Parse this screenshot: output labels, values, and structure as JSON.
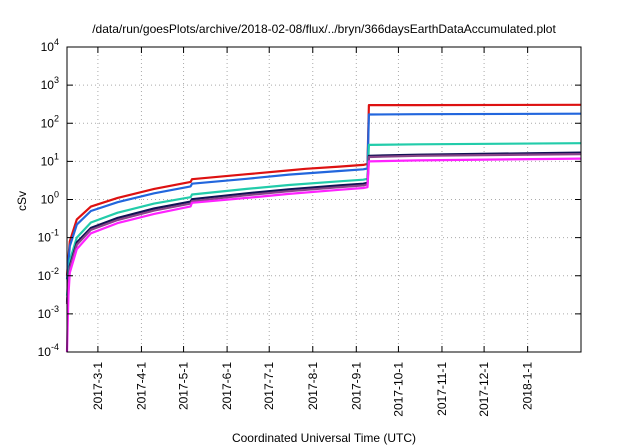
{
  "chart_data": {
    "type": "line",
    "title": "/data/run/goesPlots/archive/2018-02-08/flux/../bryn/366daysEarthDataAccumulated.plot",
    "xlabel": "Coordinated Universal Time (UTC)",
    "ylabel": "cSv",
    "yscale": "log",
    "ylim": [
      0.0001,
      10000
    ],
    "xlim": [
      "2017-02-07",
      "2018-02-08"
    ],
    "grid": true,
    "yticks": [
      {
        "value": 0.0001,
        "base": "10",
        "exp": "-4"
      },
      {
        "value": 0.001,
        "base": "10",
        "exp": "-3"
      },
      {
        "value": 0.01,
        "base": "10",
        "exp": "-2"
      },
      {
        "value": 0.1,
        "base": "10",
        "exp": "-1"
      },
      {
        "value": 1,
        "base": "10",
        "exp": "0"
      },
      {
        "value": 10,
        "base": "10",
        "exp": "1"
      },
      {
        "value": 100,
        "base": "10",
        "exp": "2"
      },
      {
        "value": 1000,
        "base": "10",
        "exp": "3"
      },
      {
        "value": 10000,
        "base": "10",
        "exp": "4"
      }
    ],
    "xticks": [
      {
        "date": "2017-03-01",
        "label": "2017-3-1"
      },
      {
        "date": "2017-04-01",
        "label": "2017-4-1"
      },
      {
        "date": "2017-05-01",
        "label": "2017-5-1"
      },
      {
        "date": "2017-06-01",
        "label": "2017-6-1"
      },
      {
        "date": "2017-07-01",
        "label": "2017-7-1"
      },
      {
        "date": "2017-08-01",
        "label": "2017-8-1"
      },
      {
        "date": "2017-09-01",
        "label": "2017-9-1"
      },
      {
        "date": "2017-10-01",
        "label": "2017-10-1"
      },
      {
        "date": "2017-11-01",
        "label": "2017-11-1"
      },
      {
        "date": "2017-12-01",
        "label": "2017-12-1"
      },
      {
        "date": "2018-01-01",
        "label": "2018-1-1"
      }
    ],
    "series": [
      {
        "color": "#dd1111",
        "points": [
          [
            "2017-02-07",
            0.01
          ],
          [
            "2017-02-09",
            0.08
          ],
          [
            "2017-02-14",
            0.3
          ],
          [
            "2017-02-24",
            0.65
          ],
          [
            "2017-03-15",
            1.1
          ],
          [
            "2017-04-10",
            1.9
          ],
          [
            "2017-05-06",
            2.9
          ],
          [
            "2017-05-07",
            3.4
          ],
          [
            "2017-06-15",
            4.6
          ],
          [
            "2017-07-15",
            5.8
          ],
          [
            "2017-07-27",
            6.4
          ],
          [
            "2017-08-20",
            7.3
          ],
          [
            "2017-09-06",
            8.1
          ],
          [
            "2017-09-09",
            8.6
          ],
          [
            "2017-09-10",
            300
          ],
          [
            "2017-10-15",
            300
          ],
          [
            "2018-02-08",
            305
          ]
        ]
      },
      {
        "color": "#2266dd",
        "points": [
          [
            "2017-02-07",
            0.008
          ],
          [
            "2017-02-09",
            0.06
          ],
          [
            "2017-02-14",
            0.22
          ],
          [
            "2017-02-24",
            0.5
          ],
          [
            "2017-03-15",
            0.85
          ],
          [
            "2017-04-10",
            1.45
          ],
          [
            "2017-05-06",
            2.2
          ],
          [
            "2017-05-07",
            2.6
          ],
          [
            "2017-06-15",
            3.5
          ],
          [
            "2017-07-15",
            4.5
          ],
          [
            "2017-08-20",
            5.6
          ],
          [
            "2017-09-06",
            6.2
          ],
          [
            "2017-09-09",
            6.5
          ],
          [
            "2017-09-10",
            170
          ],
          [
            "2017-10-15",
            173
          ],
          [
            "2018-02-08",
            178
          ]
        ]
      },
      {
        "color": "#22ccaa",
        "points": [
          [
            "2017-02-07",
            0.003
          ],
          [
            "2017-02-09",
            0.025
          ],
          [
            "2017-02-14",
            0.1
          ],
          [
            "2017-02-24",
            0.25
          ],
          [
            "2017-03-15",
            0.45
          ],
          [
            "2017-04-10",
            0.78
          ],
          [
            "2017-05-06",
            1.15
          ],
          [
            "2017-05-07",
            1.35
          ],
          [
            "2017-06-15",
            1.9
          ],
          [
            "2017-07-15",
            2.4
          ],
          [
            "2017-08-20",
            3.0
          ],
          [
            "2017-09-06",
            3.3
          ],
          [
            "2017-09-09",
            3.5
          ],
          [
            "2017-09-10",
            27
          ],
          [
            "2017-10-15",
            28
          ],
          [
            "2018-02-08",
            30
          ]
        ]
      },
      {
        "color": "#111155",
        "points": [
          [
            "2017-02-07",
            0.002
          ],
          [
            "2017-02-09",
            0.018
          ],
          [
            "2017-02-14",
            0.075
          ],
          [
            "2017-02-24",
            0.18
          ],
          [
            "2017-03-15",
            0.33
          ],
          [
            "2017-04-10",
            0.58
          ],
          [
            "2017-05-06",
            0.88
          ],
          [
            "2017-05-07",
            1.02
          ],
          [
            "2017-06-15",
            1.45
          ],
          [
            "2017-07-15",
            1.85
          ],
          [
            "2017-08-20",
            2.35
          ],
          [
            "2017-09-06",
            2.6
          ],
          [
            "2017-09-09",
            2.75
          ],
          [
            "2017-09-10",
            14
          ],
          [
            "2017-10-15",
            15
          ],
          [
            "2018-02-08",
            17
          ]
        ]
      },
      {
        "color": "#884488",
        "points": [
          [
            "2017-02-07",
            0.0018
          ],
          [
            "2017-02-09",
            0.016
          ],
          [
            "2017-02-14",
            0.065
          ],
          [
            "2017-02-24",
            0.16
          ],
          [
            "2017-03-15",
            0.29
          ],
          [
            "2017-04-10",
            0.51
          ],
          [
            "2017-05-06",
            0.78
          ],
          [
            "2017-05-07",
            0.9
          ],
          [
            "2017-06-15",
            1.3
          ],
          [
            "2017-07-15",
            1.65
          ],
          [
            "2017-08-20",
            2.1
          ],
          [
            "2017-09-06",
            2.35
          ],
          [
            "2017-09-09",
            2.5
          ],
          [
            "2017-09-10",
            13
          ],
          [
            "2017-10-15",
            14
          ],
          [
            "2018-02-08",
            15.5
          ]
        ]
      },
      {
        "color": "#ff22ff",
        "points": [
          [
            "2017-02-07",
            0.0001
          ],
          [
            "2017-02-08",
            0.003
          ],
          [
            "2017-02-09",
            0.012
          ],
          [
            "2017-02-14",
            0.05
          ],
          [
            "2017-02-24",
            0.13
          ],
          [
            "2017-03-15",
            0.24
          ],
          [
            "2017-04-10",
            0.42
          ],
          [
            "2017-05-06",
            0.66
          ],
          [
            "2017-05-07",
            0.82
          ],
          [
            "2017-06-15",
            1.1
          ],
          [
            "2017-07-15",
            1.4
          ],
          [
            "2017-08-20",
            1.8
          ],
          [
            "2017-09-06",
            2.0
          ],
          [
            "2017-09-09",
            2.1
          ],
          [
            "2017-09-10",
            10
          ],
          [
            "2017-10-15",
            10.6
          ],
          [
            "2018-02-08",
            11.8
          ]
        ]
      }
    ]
  }
}
